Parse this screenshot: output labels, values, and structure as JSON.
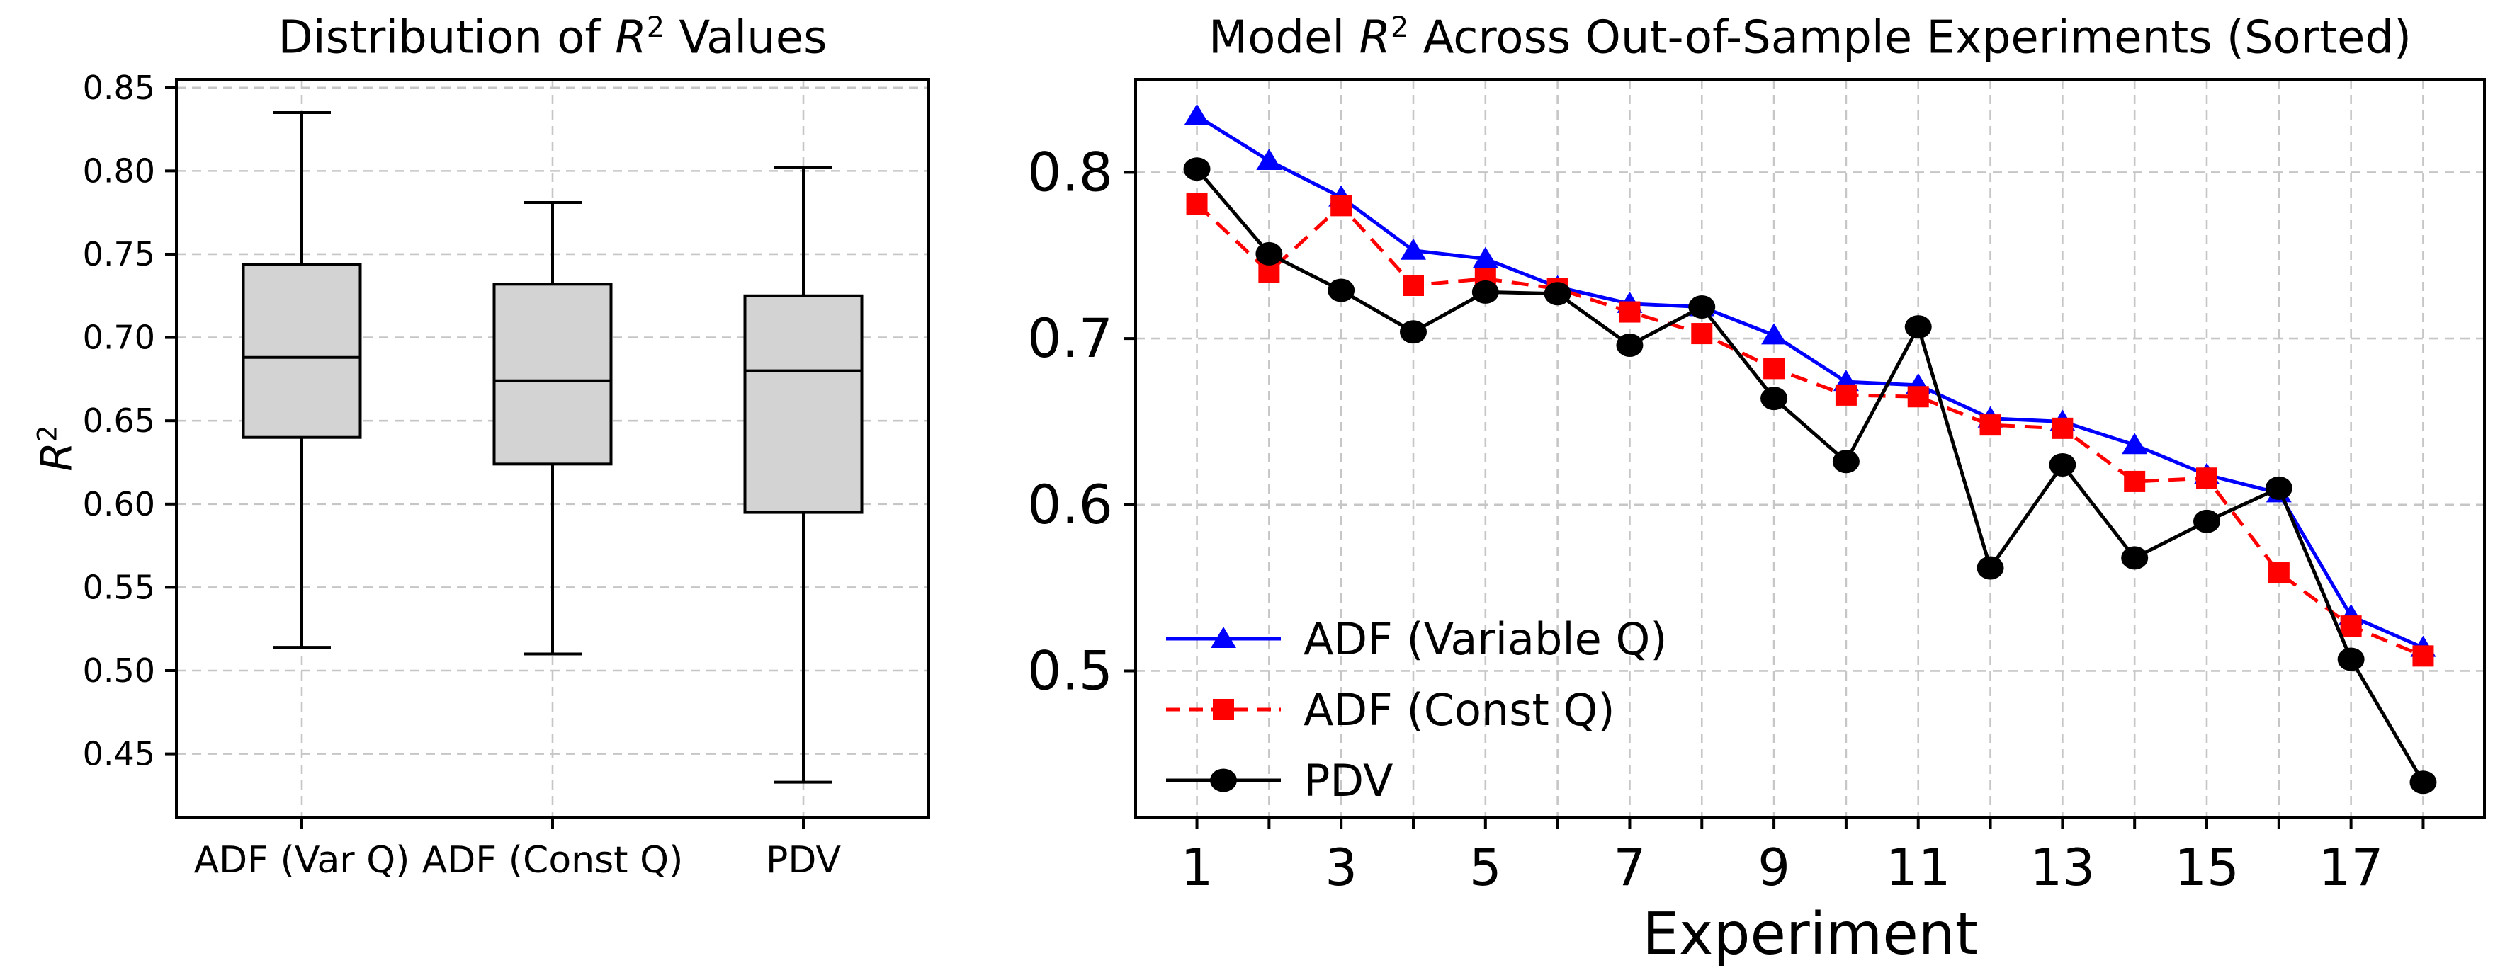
{
  "figure": {
    "background": "#ffffff",
    "grid_color": "#c6c6c6",
    "spine_color": "#000000"
  },
  "left_plot": {
    "title_parts": {
      "prefix": "Distribution of ",
      "r": "R",
      "sup": "2",
      "suffix": " Values"
    },
    "ylabel_parts": {
      "r": "R",
      "sup": "2"
    },
    "ytick_labels": [
      "0.45",
      "0.50",
      "0.55",
      "0.60",
      "0.65",
      "0.70",
      "0.75",
      "0.80",
      "0.85"
    ],
    "xtick_labels": [
      "ADF (Var Q)",
      "ADF (Const Q)",
      "PDV"
    ]
  },
  "right_plot": {
    "title_parts": {
      "prefix": "Model ",
      "r": "R",
      "sup": "2",
      "suffix": " Across Out-of-Sample Experiments (Sorted)"
    },
    "xlabel": "Experiment",
    "ytick_labels": [
      "0.5",
      "0.6",
      "0.7",
      "0.8"
    ],
    "xtick_labels": [
      "1",
      "3",
      "5",
      "7",
      "9",
      "11",
      "13",
      "15",
      "17"
    ]
  },
  "legend": {
    "items": [
      {
        "label": "ADF (Variable Q)",
        "color": "#0000ff",
        "marker": "triangle",
        "linestyle": "solid"
      },
      {
        "label": "ADF (Const Q)",
        "color": "#ff0000",
        "marker": "square",
        "linestyle": "dashed"
      },
      {
        "label": "PDV",
        "color": "#000000",
        "marker": "circle",
        "linestyle": "solid"
      }
    ]
  },
  "chart_data": [
    {
      "type": "boxplot",
      "title": "Distribution of R² Values",
      "ylabel": "R²",
      "categories": [
        "ADF (Var Q)",
        "ADF (Const Q)",
        "PDV"
      ],
      "boxes": [
        {
          "label": "ADF (Var Q)",
          "whislo": 0.514,
          "q1": 0.64,
          "med": 0.688,
          "q3": 0.744,
          "whishi": 0.835
        },
        {
          "label": "ADF (Const Q)",
          "whislo": 0.51,
          "q1": 0.624,
          "med": 0.674,
          "q3": 0.732,
          "whishi": 0.781
        },
        {
          "label": "PDV",
          "whislo": 0.433,
          "q1": 0.595,
          "med": 0.68,
          "q3": 0.725,
          "whishi": 0.802
        }
      ],
      "box_fill": "#d3d3d3",
      "ylim": [
        0.412,
        0.855
      ],
      "yticks": [
        0.45,
        0.5,
        0.55,
        0.6,
        0.65,
        0.7,
        0.75,
        0.8,
        0.85
      ],
      "grid": true
    },
    {
      "type": "line",
      "title": "Model R² Across Out-of-Sample Experiments (Sorted)",
      "xlabel": "Experiment",
      "x": [
        1,
        2,
        3,
        4,
        5,
        6,
        7,
        8,
        9,
        10,
        11,
        12,
        13,
        14,
        15,
        16,
        17,
        18
      ],
      "xticks_labeled": [
        1,
        3,
        5,
        7,
        9,
        11,
        13,
        15,
        17
      ],
      "xlim": [
        0.15,
        18.85
      ],
      "ylim": [
        0.412,
        0.856
      ],
      "yticks": [
        0.5,
        0.6,
        0.7,
        0.8
      ],
      "grid": true,
      "legend_position": "lower left",
      "series": [
        {
          "name": "ADF (Variable Q)",
          "color": "#0000ff",
          "marker": "triangle",
          "linestyle": "solid",
          "values": [
            0.834,
            0.807,
            0.785,
            0.753,
            0.748,
            0.731,
            0.721,
            0.719,
            0.702,
            0.674,
            0.672,
            0.652,
            0.65,
            0.636,
            0.618,
            0.607,
            0.533,
            0.514
          ]
        },
        {
          "name": "ADF (Const Q)",
          "color": "#ff0000",
          "marker": "square",
          "linestyle": "dashed",
          "values": [
            0.781,
            0.74,
            0.78,
            0.732,
            0.736,
            0.73,
            0.716,
            0.703,
            0.682,
            0.666,
            0.665,
            0.648,
            0.646,
            0.614,
            0.616,
            0.559,
            0.527,
            0.509
          ]
        },
        {
          "name": "PDV",
          "color": "#000000",
          "marker": "circle",
          "linestyle": "solid",
          "values": [
            0.802,
            0.751,
            0.729,
            0.704,
            0.728,
            0.727,
            0.696,
            0.719,
            0.664,
            0.626,
            0.707,
            0.562,
            0.624,
            0.568,
            0.59,
            0.61,
            0.507,
            0.433
          ]
        }
      ]
    }
  ]
}
